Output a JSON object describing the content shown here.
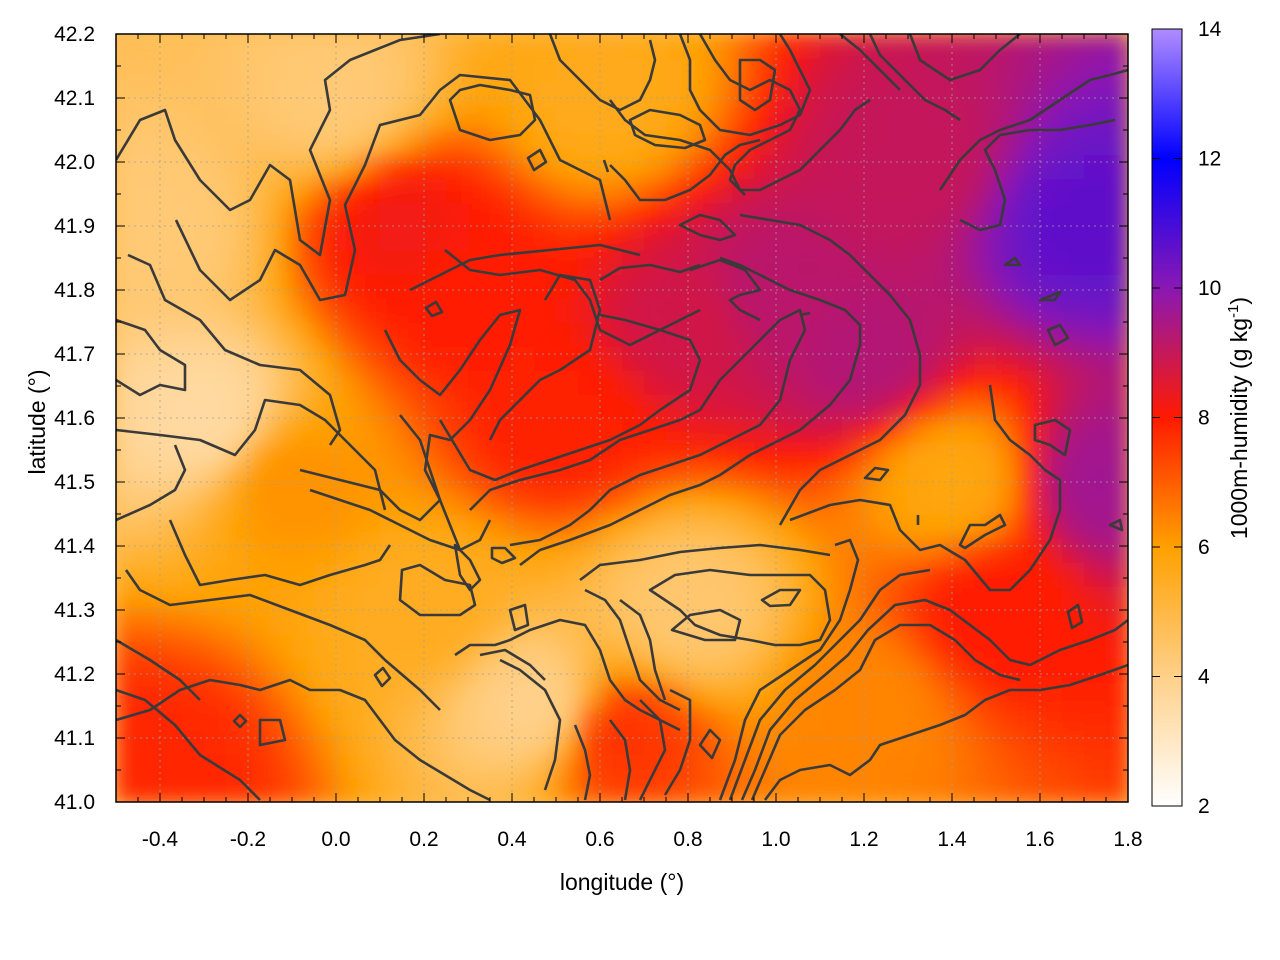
{
  "chart_data": {
    "type": "heatmap",
    "title": "",
    "xlabel": "longitude (°)",
    "ylabel": "latitude (°)",
    "colorbar_label": "1000m-humidity (g kg",
    "colorbar_label_sup": "-1",
    "colorbar_label_end": ")",
    "xlim": [
      -0.5,
      1.8
    ],
    "ylim": [
      41.0,
      42.2
    ],
    "clim": [
      2,
      14
    ],
    "x_ticks": [
      "-0.4",
      "-0.2",
      "0.0",
      "0.2",
      "0.4",
      "0.6",
      "0.8",
      "1.0",
      "1.2",
      "1.4",
      "1.6",
      "1.8"
    ],
    "x_tick_values": [
      -0.4,
      -0.2,
      0.0,
      0.2,
      0.4,
      0.6,
      0.8,
      1.0,
      1.2,
      1.4,
      1.6,
      1.8
    ],
    "y_ticks": [
      "41.0",
      "41.1",
      "41.2",
      "41.3",
      "41.4",
      "41.5",
      "41.6",
      "41.7",
      "41.8",
      "41.9",
      "42.0",
      "42.1",
      "42.2"
    ],
    "y_tick_values": [
      41.0,
      41.1,
      41.2,
      41.3,
      41.4,
      41.5,
      41.6,
      41.7,
      41.8,
      41.9,
      42.0,
      42.1,
      42.2
    ],
    "colorbar_ticks": [
      "2",
      "4",
      "6",
      "8",
      "10",
      "12",
      "14"
    ],
    "colorbar_tick_values": [
      2,
      4,
      6,
      8,
      10,
      12,
      14
    ],
    "colormap": [
      "#ffffff",
      "#ffd089",
      "#ffa000",
      "#ff1a00",
      "#8a18b4",
      "#0000ff",
      "#b08cff"
    ],
    "colormap_stops": [
      2,
      4,
      6,
      8,
      10,
      12,
      14
    ],
    "grid": true,
    "contours": true,
    "approximate_field": [
      {
        "lon": -0.4,
        "lat": 41.9,
        "humidity": 4.3
      },
      {
        "lon": -0.3,
        "lat": 41.6,
        "humidity": 3.6
      },
      {
        "lon": -0.4,
        "lat": 41.05,
        "humidity": 7.8
      },
      {
        "lon": -0.1,
        "lat": 41.5,
        "humidity": 6.2
      },
      {
        "lon": 0.15,
        "lat": 41.9,
        "humidity": 8.2
      },
      {
        "lon": 0.3,
        "lat": 41.8,
        "humidity": 8.0
      },
      {
        "lon": 0.5,
        "lat": 41.6,
        "humidity": 7.9
      },
      {
        "lon": 0.8,
        "lat": 41.75,
        "humidity": 8.8
      },
      {
        "lon": 1.0,
        "lat": 41.8,
        "humidity": 9.2
      },
      {
        "lon": 1.2,
        "lat": 41.7,
        "humidity": 9.3
      },
      {
        "lon": 1.3,
        "lat": 42.0,
        "humidity": 9.0
      },
      {
        "lon": 1.7,
        "lat": 41.9,
        "humidity": 10.6
      },
      {
        "lon": 1.75,
        "lat": 41.5,
        "humidity": 9.6
      },
      {
        "lon": 1.4,
        "lat": 41.5,
        "humidity": 5.8
      },
      {
        "lon": 1.5,
        "lat": 41.3,
        "humidity": 8.0
      },
      {
        "lon": 0.8,
        "lat": 41.3,
        "humidity": 4.4
      },
      {
        "lon": 0.65,
        "lat": 41.1,
        "humidity": 7.6
      },
      {
        "lon": 0.45,
        "lat": 41.15,
        "humidity": 4.0
      },
      {
        "lon": 0.2,
        "lat": 41.3,
        "humidity": 5.5
      },
      {
        "lon": 1.2,
        "lat": 41.15,
        "humidity": 6.4
      },
      {
        "lon": 0.6,
        "lat": 42.1,
        "humidity": 5.6
      },
      {
        "lon": 0.0,
        "lat": 42.1,
        "humidity": 4.3
      }
    ]
  }
}
